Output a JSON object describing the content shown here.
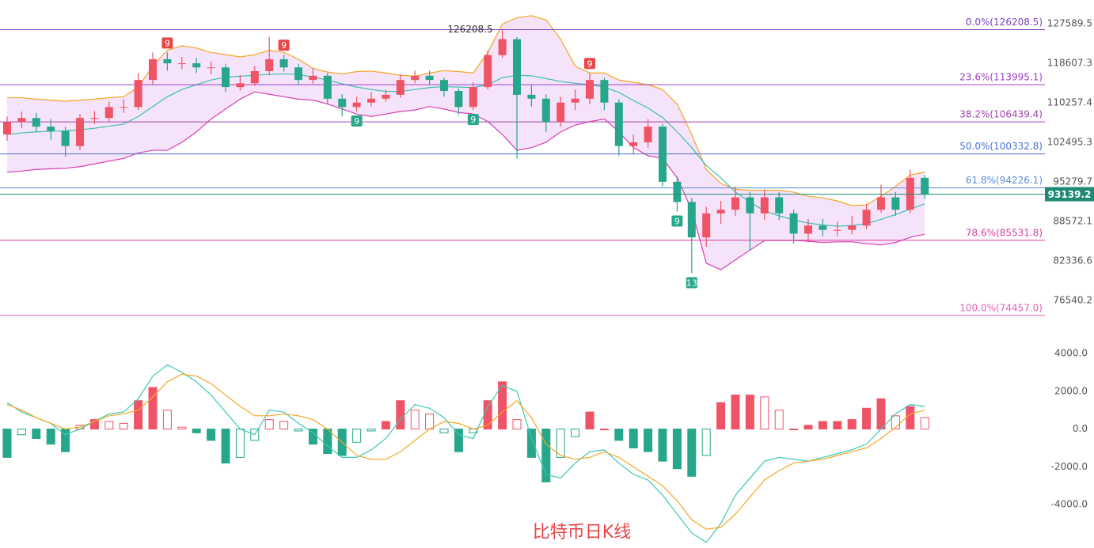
{
  "chart_data": {
    "type": "candlestick",
    "title": "比特币日K线",
    "log_scale": true,
    "ylim": [
      72200,
      133300
    ],
    "yticks": [
      127589.5,
      118607.3,
      110257.4,
      102495.3,
      95279.7,
      88572.1,
      82336.6,
      76540.2
    ],
    "up_color": "#ef5366",
    "down_color": "#26a68a",
    "open": [
      104000,
      106400,
      107200,
      105500,
      104700,
      101800,
      107200,
      107200,
      109400,
      109400,
      115000,
      119500,
      118600,
      118600,
      117700,
      117700,
      113500,
      114300,
      116900,
      119500,
      117700,
      115000,
      115900,
      111100,
      109400,
      110300,
      111100,
      111900,
      115000,
      115900,
      115000,
      112700,
      109400,
      113500,
      120400,
      124000,
      111900,
      111100,
      106400,
      110300,
      111100,
      115000,
      110300,
      101800,
      102500,
      105500,
      95300,
      91800,
      86000,
      89900,
      90500,
      92600,
      89900,
      92600,
      89900,
      86600,
      87900,
      87200,
      87200,
      87900,
      90500,
      92600,
      90500,
      96000
    ],
    "high": [
      107500,
      108500,
      108200,
      107000,
      105500,
      108000,
      108600,
      110500,
      111000,
      116500,
      121000,
      121000,
      120000,
      119800,
      119000,
      118500,
      116000,
      118000,
      124500,
      120500,
      118500,
      117500,
      116500,
      112000,
      111500,
      112500,
      113000,
      116200,
      117000,
      117000,
      115500,
      113200,
      114500,
      121500,
      126208.5,
      124500,
      114000,
      112000,
      111500,
      113000,
      116500,
      115500,
      111000,
      104000,
      107000,
      106000,
      96200,
      92500,
      91000,
      92000,
      94500,
      93500,
      94000,
      93500,
      90500,
      89000,
      89000,
      88500,
      89500,
      91500,
      94800,
      93500,
      97500,
      96500
    ],
    "low": [
      102800,
      105200,
      104500,
      103000,
      99800,
      101000,
      106000,
      106500,
      108200,
      108800,
      114000,
      117000,
      117300,
      116500,
      116200,
      112500,
      112800,
      113800,
      116000,
      116800,
      114000,
      114200,
      110000,
      107500,
      108500,
      109500,
      110500,
      111300,
      114300,
      114000,
      111500,
      107800,
      108800,
      113000,
      119800,
      99500,
      109500,
      104500,
      105500,
      108800,
      110000,
      108800,
      100000,
      100200,
      101500,
      94500,
      90200,
      80500,
      84500,
      88200,
      89500,
      84000,
      88800,
      88800,
      85000,
      85200,
      86200,
      86200,
      86500,
      87300,
      90000,
      89500,
      90000,
      92300
    ],
    "close": [
      106400,
      107200,
      105500,
      104700,
      101800,
      107200,
      107200,
      109400,
      109400,
      115000,
      119500,
      118600,
      118600,
      117700,
      117700,
      113500,
      114300,
      116900,
      119500,
      117700,
      115000,
      115900,
      111100,
      109400,
      110300,
      111100,
      111900,
      115000,
      115900,
      115000,
      112700,
      109400,
      113500,
      120400,
      124000,
      111900,
      111100,
      106400,
      110300,
      111100,
      115000,
      110300,
      101800,
      102500,
      105500,
      95300,
      91800,
      86000,
      89900,
      90500,
      92600,
      89900,
      92600,
      89900,
      86600,
      87900,
      87200,
      87200,
      87900,
      90500,
      92600,
      90500,
      96000,
      93100
    ],
    "bollinger": {
      "fill": "#f5e3fa",
      "upper_color": "#f5a623",
      "middle_color": "#3cc0b0",
      "lower_color": "#d63fb3",
      "upper": [
        111300,
        111300,
        111000,
        110800,
        110600,
        110800,
        111000,
        111300,
        111500,
        113500,
        118000,
        121500,
        122500,
        122000,
        121000,
        120500,
        120000,
        120500,
        121500,
        121000,
        119500,
        117500,
        116700,
        116300,
        116800,
        116900,
        116500,
        116000,
        115800,
        116500,
        117000,
        116800,
        116500,
        121000,
        127500,
        129000,
        129500,
        128500,
        124000,
        118000,
        116500,
        116500,
        115000,
        114500,
        114000,
        113000,
        110000,
        104000,
        97500,
        95000,
        94000,
        93800,
        93800,
        93800,
        93500,
        92800,
        92500,
        92000,
        91200,
        91300,
        92800,
        94500,
        96500,
        97000
      ],
      "middle": [
        104000,
        104300,
        104500,
        104600,
        104700,
        104900,
        105200,
        105600,
        106000,
        107500,
        109500,
        111500,
        113000,
        114000,
        115000,
        115600,
        115800,
        116000,
        116200,
        116300,
        116200,
        115600,
        115000,
        114200,
        113500,
        113000,
        112600,
        112600,
        113000,
        113400,
        113600,
        113500,
        113400,
        114000,
        115500,
        116000,
        115900,
        115300,
        114700,
        114300,
        114000,
        113500,
        112400,
        110700,
        109200,
        107300,
        104500,
        101500,
        98200,
        96000,
        93500,
        91800,
        90300,
        89500,
        88800,
        88300,
        88000,
        87800,
        87900,
        88200,
        88900,
        89700,
        90600,
        91500
      ],
      "lower": [
        97000,
        97200,
        97500,
        97600,
        97700,
        98000,
        98500,
        99000,
        99500,
        100500,
        101000,
        101000,
        102500,
        104500,
        107000,
        109000,
        111000,
        112500,
        112000,
        111500,
        111000,
        110800,
        110000,
        109000,
        108000,
        107500,
        108000,
        108500,
        108800,
        109500,
        109000,
        108300,
        108000,
        106500,
        104000,
        101000,
        101500,
        102500,
        104500,
        105800,
        106500,
        107000,
        104500,
        101500,
        100000,
        99500,
        96000,
        90500,
        82000,
        81000,
        82500,
        84000,
        85500,
        85500,
        85500,
        85400,
        85200,
        85300,
        85300,
        85000,
        84800,
        85200,
        86000,
        86500
      ]
    },
    "fib_levels": [
      {
        "value": 126208.5,
        "label": "0.0%(126208.5)",
        "color": "#7a3fc0"
      },
      {
        "value": 113995.1,
        "label": "23.6%(113995.1)",
        "color": "#9a40c0"
      },
      {
        "value": 106439.4,
        "label": "38.2%(106439.4)",
        "color": "#a040b0"
      },
      {
        "value": 100332.8,
        "label": "50.0%(100332.8)",
        "color": "#4a6fd8"
      },
      {
        "value": 94226.1,
        "label": "61.8%(94226.1)",
        "color": "#5a8ae0"
      },
      {
        "value": 85531.8,
        "label": "78.6%(85531.8)",
        "color": "#d63fa0"
      },
      {
        "value": 74457.0,
        "label": "100.0%(74457.0)",
        "color": "#e060b8"
      }
    ],
    "peak_label": 126208.5,
    "last_price": 93139.2,
    "last_price_color": "#1e8a73",
    "td_labels": [
      null,
      null,
      null,
      null,
      null,
      null,
      null,
      null,
      null,
      null,
      null,
      {
        "text": "9",
        "side": "sell"
      },
      null,
      null,
      null,
      null,
      null,
      null,
      null,
      {
        "text": "9",
        "side": "sell"
      },
      null,
      null,
      null,
      null,
      {
        "text": "9",
        "side": "buy"
      },
      null,
      null,
      null,
      null,
      null,
      null,
      null,
      {
        "text": "9",
        "side": "buy"
      },
      null,
      null,
      null,
      null,
      null,
      null,
      null,
      {
        "text": "9",
        "side": "sell"
      },
      null,
      null,
      null,
      null,
      null,
      {
        "text": "9",
        "side": "buy"
      },
      {
        "text": "13",
        "side": "buy"
      },
      null,
      null,
      null,
      null,
      null,
      null,
      null,
      null,
      null,
      null,
      null,
      null,
      null,
      null,
      null,
      null
    ],
    "macd": {
      "ylim": [
        -6170,
        4710
      ],
      "yticks": [
        {
          "value": 4000,
          "label": "4000.0"
        },
        {
          "value": 2000,
          "label": "2000.0"
        },
        {
          "value": 0,
          "label": "0.0"
        },
        {
          "value": -2000,
          "label": "-2000.0"
        },
        {
          "value": -4000,
          "label": "-4000.0"
        }
      ],
      "dif_color": "#3cc9b5",
      "dea_color": "#f5a623",
      "hist": [
        -1500,
        -300,
        -500,
        -800,
        -1200,
        200,
        500,
        400,
        300,
        1500,
        2200,
        1000,
        100,
        -200,
        -600,
        -1800,
        -1500,
        -600,
        500,
        400,
        -100,
        -800,
        -1300,
        -1400,
        -700,
        -100,
        400,
        1500,
        1000,
        800,
        -200,
        -1200,
        -200,
        1500,
        2500,
        500,
        -1500,
        -2800,
        -1500,
        -400,
        900,
        0,
        -600,
        -1000,
        -1200,
        -1700,
        -2100,
        -2500,
        -1400,
        1400,
        1800,
        1800,
        1700,
        1000,
        0,
        200,
        400,
        400,
        500,
        1100,
        1600,
        700,
        1200,
        600
      ],
      "dif": [
        1400,
        900,
        600,
        300,
        -300,
        0,
        400,
        800,
        900,
        1600,
        2800,
        3400,
        3000,
        2500,
        1800,
        900,
        0,
        -300,
        1000,
        900,
        300,
        -200,
        -900,
        -1500,
        -1500,
        -1100,
        -500,
        500,
        1300,
        1100,
        600,
        -300,
        -500,
        1200,
        2300,
        2000,
        -500,
        -2400,
        -2600,
        -1800,
        -1200,
        -1100,
        -1800,
        -2400,
        -2700,
        -3500,
        -4500,
        -5500,
        -6000,
        -5000,
        -3500,
        -2600,
        -1700,
        -1500,
        -1600,
        -1700,
        -1500,
        -1300,
        -1100,
        -800,
        0,
        800,
        1300,
        1200
      ],
      "dea": [
        1300,
        1000,
        600,
        300,
        0,
        100,
        400,
        700,
        800,
        1000,
        1700,
        2500,
        2900,
        2800,
        2400,
        1800,
        1200,
        700,
        700,
        800,
        700,
        500,
        0,
        -700,
        -1400,
        -1600,
        -1600,
        -1200,
        -600,
        0,
        400,
        300,
        0,
        200,
        900,
        1500,
        600,
        -800,
        -1400,
        -1600,
        -1500,
        -1200,
        -1500,
        -2000,
        -2500,
        -3000,
        -3800,
        -4800,
        -5300,
        -5200,
        -4500,
        -3600,
        -2700,
        -2200,
        -1800,
        -1700,
        -1600,
        -1400,
        -1200,
        -1000,
        -500,
        100,
        800,
        1000
      ]
    }
  }
}
